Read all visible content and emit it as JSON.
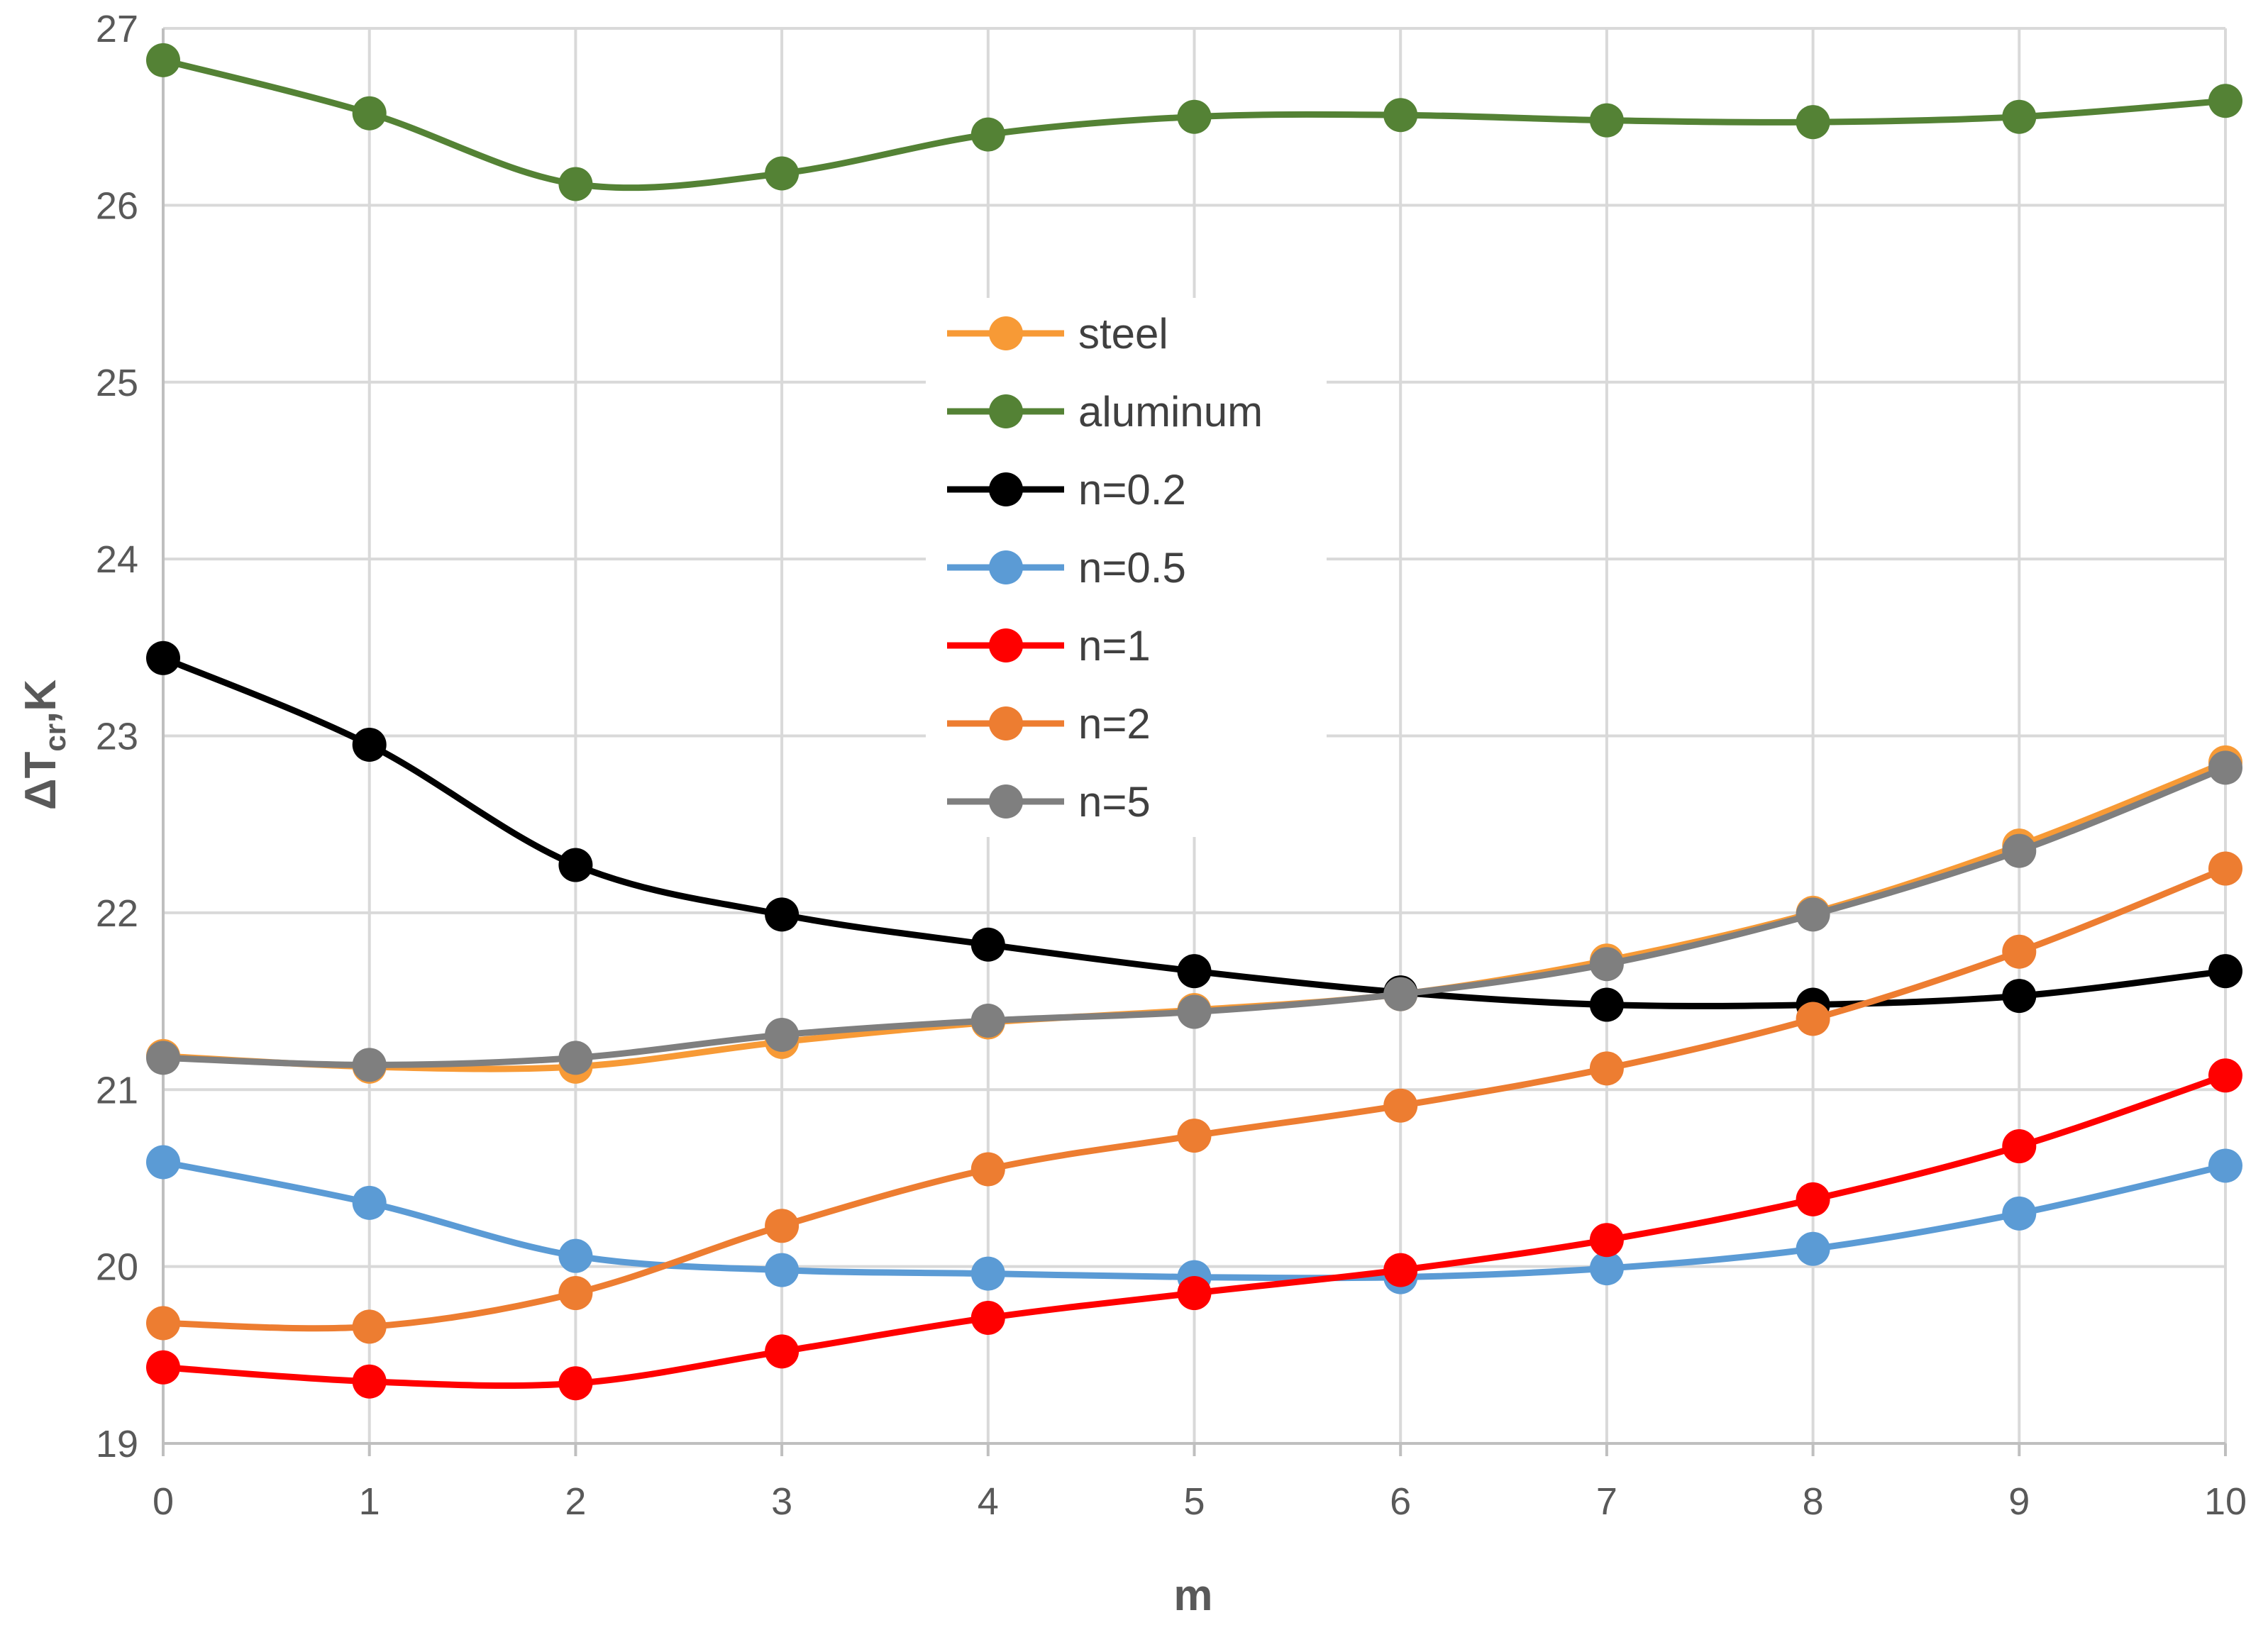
{
  "chart_data": {
    "type": "line",
    "title": "",
    "xlabel": "m",
    "ylabel": {
      "prefix": "ΔT",
      "subscript": "cr",
      "suffix": ",K"
    },
    "x": [
      0,
      1,
      2,
      3,
      4,
      5,
      6,
      7,
      8,
      9,
      10
    ],
    "xlim": [
      0,
      10
    ],
    "ylim": [
      19,
      27
    ],
    "xticks": [
      "0",
      "1",
      "2",
      "3",
      "4",
      "5",
      "6",
      "7",
      "8",
      "9",
      "10"
    ],
    "yticks": [
      "19",
      "20",
      "21",
      "22",
      "23",
      "24",
      "25",
      "26",
      "27"
    ],
    "grid": true,
    "legend_position": "center-top",
    "series": [
      {
        "name": "steel",
        "color": "#F79A36",
        "values": [
          21.19,
          21.13,
          21.13,
          21.27,
          21.38,
          21.45,
          21.54,
          21.73,
          22.0,
          22.38,
          22.85
        ]
      },
      {
        "name": "aluminum",
        "color": "#548235",
        "values": [
          26.82,
          26.52,
          26.12,
          26.18,
          26.4,
          26.5,
          26.51,
          26.48,
          26.47,
          26.5,
          26.59
        ]
      },
      {
        "name": "n=0.2",
        "color": "#000000",
        "values": [
          23.44,
          22.95,
          22.27,
          21.99,
          21.82,
          21.67,
          21.55,
          21.48,
          21.48,
          21.53,
          21.67
        ]
      },
      {
        "name": "n=0.5",
        "color": "#5B9BD5",
        "values": [
          20.59,
          20.36,
          20.06,
          19.98,
          19.96,
          19.94,
          19.94,
          19.99,
          20.1,
          20.3,
          20.57
        ]
      },
      {
        "name": "n=1",
        "color": "#FF0000",
        "values": [
          19.43,
          19.35,
          19.34,
          19.52,
          19.71,
          19.85,
          19.98,
          20.15,
          20.38,
          20.68,
          21.08
        ]
      },
      {
        "name": "n=2",
        "color": "#ED7D31",
        "values": [
          19.68,
          19.66,
          19.85,
          20.23,
          20.55,
          20.74,
          20.91,
          21.12,
          21.4,
          21.78,
          22.25
        ]
      },
      {
        "name": "n=5",
        "color": "#7F7F7F",
        "values": [
          21.18,
          21.14,
          21.18,
          21.31,
          21.39,
          21.44,
          21.54,
          21.71,
          21.99,
          22.35,
          22.82
        ]
      }
    ]
  }
}
